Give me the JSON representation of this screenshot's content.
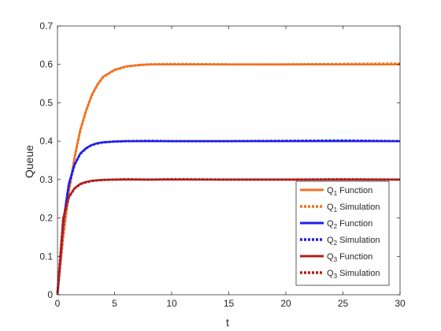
{
  "chart_data": {
    "type": "line",
    "title": "",
    "xlabel": "t",
    "ylabel": "Queue",
    "xlim": [
      0,
      30
    ],
    "ylim": [
      0,
      0.7
    ],
    "xticks": [
      0,
      5,
      10,
      15,
      20,
      25,
      30
    ],
    "yticks": [
      0,
      0.1,
      0.2,
      0.3,
      0.4,
      0.5,
      0.6,
      0.7
    ],
    "grid": false,
    "legend_position": "bottom-right",
    "series": [
      {
        "name": "Q1 Function",
        "q": "Q",
        "sub": "1",
        "suffix": " Function",
        "style": "solid",
        "color": "#F07321",
        "x": [
          0,
          0.5,
          1,
          1.5,
          2,
          2.5,
          3,
          3.5,
          4,
          5,
          6,
          7,
          8,
          10,
          15,
          20,
          25,
          30
        ],
        "y": [
          0,
          0.155,
          0.27,
          0.36,
          0.43,
          0.48,
          0.52,
          0.548,
          0.568,
          0.586,
          0.595,
          0.598,
          0.6,
          0.6,
          0.6,
          0.6,
          0.6,
          0.6
        ]
      },
      {
        "name": "Q1 Simulation",
        "q": "Q",
        "sub": "1",
        "suffix": " Simulation",
        "style": "dotted",
        "color": "#F07321",
        "x": [
          0,
          0.5,
          1,
          1.5,
          2,
          2.5,
          3,
          3.5,
          4,
          5,
          6,
          7,
          8,
          10,
          15,
          20,
          25,
          30
        ],
        "y": [
          0.005,
          0.15,
          0.268,
          0.358,
          0.428,
          0.479,
          0.519,
          0.547,
          0.567,
          0.585,
          0.594,
          0.598,
          0.6,
          0.601,
          0.6,
          0.6,
          0.601,
          0.602
        ]
      },
      {
        "name": "Q2 Function",
        "q": "Q",
        "sub": "2",
        "suffix": " Function",
        "style": "solid",
        "color": "#1F1FEB",
        "x": [
          0,
          0.5,
          1,
          1.5,
          2,
          2.5,
          3,
          3.5,
          4,
          5,
          6,
          8,
          10,
          15,
          20,
          25,
          30
        ],
        "y": [
          0,
          0.19,
          0.29,
          0.34,
          0.368,
          0.382,
          0.39,
          0.395,
          0.397,
          0.399,
          0.4,
          0.4,
          0.4,
          0.4,
          0.4,
          0.4,
          0.4
        ]
      },
      {
        "name": "Q2 Simulation",
        "q": "Q",
        "sub": "2",
        "suffix": " Simulation",
        "style": "dotted",
        "color": "#1F1FEB",
        "x": [
          0,
          0.5,
          1,
          1.5,
          2,
          2.5,
          3,
          3.5,
          4,
          5,
          6,
          8,
          10,
          15,
          20,
          25,
          30
        ],
        "y": [
          0.005,
          0.187,
          0.288,
          0.339,
          0.367,
          0.381,
          0.39,
          0.394,
          0.397,
          0.399,
          0.4,
          0.401,
          0.4,
          0.4,
          0.401,
          0.402,
          0.4
        ]
      },
      {
        "name": "Q3 Function",
        "q": "Q",
        "sub": "3",
        "suffix": " Function",
        "style": "solid",
        "color": "#B31C1C",
        "x": [
          0,
          0.5,
          1,
          1.5,
          2,
          2.5,
          3,
          3.5,
          4,
          5,
          6,
          8,
          10,
          15,
          20,
          25,
          30
        ],
        "y": [
          0,
          0.2,
          0.255,
          0.278,
          0.289,
          0.294,
          0.297,
          0.298,
          0.299,
          0.3,
          0.3,
          0.3,
          0.3,
          0.3,
          0.3,
          0.3,
          0.3
        ]
      },
      {
        "name": "Q3 Simulation",
        "q": "Q",
        "sub": "3",
        "suffix": " Simulation",
        "style": "dotted",
        "color": "#B31C1C",
        "x": [
          0,
          0.5,
          1,
          1.5,
          2,
          2.5,
          3,
          3.5,
          4,
          5,
          6,
          8,
          10,
          15,
          20,
          25,
          30
        ],
        "y": [
          0.005,
          0.198,
          0.254,
          0.277,
          0.288,
          0.293,
          0.296,
          0.298,
          0.299,
          0.3,
          0.301,
          0.3,
          0.301,
          0.3,
          0.3,
          0.301,
          0.3
        ]
      }
    ]
  }
}
